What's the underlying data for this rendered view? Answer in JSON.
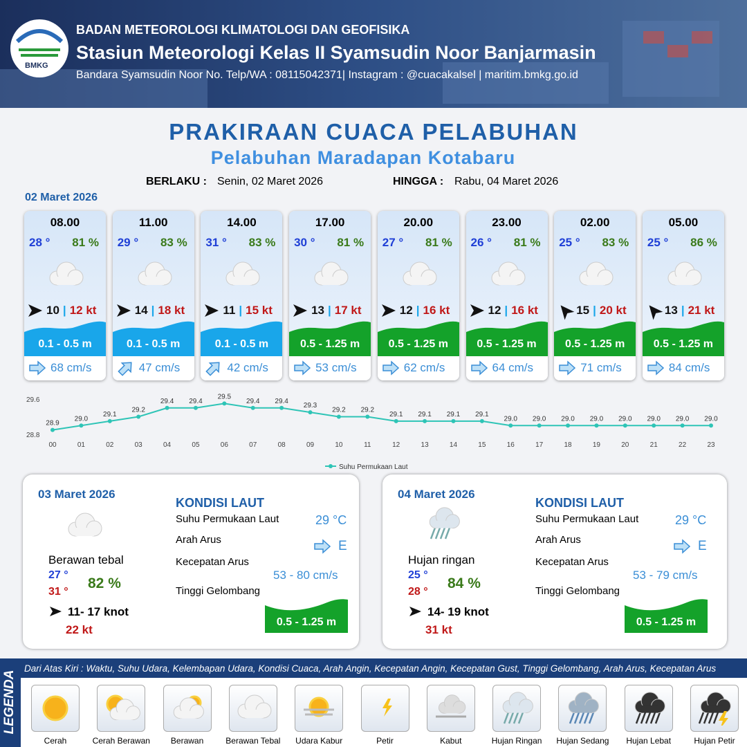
{
  "header": {
    "logo": "BMKG",
    "org": "BADAN METEOROLOGI KLIMATOLOGI DAN GEOFISIKA",
    "station": "Stasiun Meteorologi Kelas II Syamsudin Noor Banjarmasin",
    "contact": "Bandara Syamsudin Noor No. Telp/WA : 08115042371| Instagram : @cuacakalsel | maritim.bmkg.go.id"
  },
  "title": "PRAKIRAAN CUACA PELABUHAN",
  "subtitle": "Pelabuhan Maradapan Kotabaru",
  "validity": {
    "from_label": "BERLAKU :",
    "from": "Senin, 02 Maret 2026",
    "to_label": "HINGGA :",
    "to": "Rabu, 04 Maret 2026"
  },
  "day1": {
    "date": "02 Maret 2026",
    "separator": "|",
    "cards": [
      {
        "time": "08.00",
        "temp": "28 °",
        "humidity": "81 %",
        "wind": "10",
        "gust": "12 kt",
        "wave": "0.1 - 0.5 m",
        "current": "68 cm/s"
      },
      {
        "time": "11.00",
        "temp": "29 °",
        "humidity": "83 %",
        "wind": "14",
        "gust": "18 kt",
        "wave": "0.1 - 0.5 m",
        "current": "47 cm/s"
      },
      {
        "time": "14.00",
        "temp": "31 °",
        "humidity": "83 %",
        "wind": "11",
        "gust": "15 kt",
        "wave": "0.1 - 0.5 m",
        "current": "42 cm/s"
      },
      {
        "time": "17.00",
        "temp": "30 °",
        "humidity": "81 %",
        "wind": "13",
        "gust": "17 kt",
        "wave": "0.5 - 1.25 m",
        "current": "53 cm/s"
      },
      {
        "time": "20.00",
        "temp": "27 °",
        "humidity": "81 %",
        "wind": "12",
        "gust": "16 kt",
        "wave": "0.5 - 1.25 m",
        "current": "62 cm/s"
      },
      {
        "time": "23.00",
        "temp": "26 °",
        "humidity": "81 %",
        "wind": "12",
        "gust": "16 kt",
        "wave": "0.5 - 1.25 m",
        "current": "64 cm/s"
      },
      {
        "time": "02.00",
        "temp": "25 °",
        "humidity": "83 %",
        "wind": "15",
        "gust": "20 kt",
        "wave": "0.5 - 1.25 m",
        "current": "71 cm/s"
      },
      {
        "time": "05.00",
        "temp": "25 °",
        "humidity": "86 %",
        "wind": "13",
        "gust": "21 kt",
        "wave": "0.5 - 1.25 m",
        "current": "84 cm/s"
      }
    ]
  },
  "chart_data": {
    "type": "line",
    "categories": [
      "00",
      "01",
      "02",
      "03",
      "04",
      "05",
      "06",
      "07",
      "08",
      "09",
      "10",
      "11",
      "12",
      "13",
      "14",
      "15",
      "16",
      "17",
      "18",
      "19",
      "20",
      "21",
      "22",
      "23"
    ],
    "series": [
      {
        "name": "Suhu Permukaan Laut",
        "color": "#2ec4b6",
        "values": [
          28.9,
          29.0,
          29.1,
          29.2,
          29.4,
          29.4,
          29.5,
          29.4,
          29.4,
          29.3,
          29.2,
          29.2,
          29.1,
          29.1,
          29.1,
          29.1,
          29.0,
          29.0,
          29.0,
          29.0,
          29.0,
          29.0,
          29.0,
          29.0
        ],
        "value_labels": [
          "28.9",
          "29.0",
          "29.1",
          "29.2",
          "29.4",
          "29.4",
          "29.5",
          "29.4",
          "29.4",
          "29.3",
          "29.2",
          "29.2",
          "29.1",
          "29.1",
          "29.1",
          "29.1",
          "29.0",
          "29.0",
          "29.0",
          "29.0",
          "29.0",
          "29.0",
          "29.0",
          "29.0"
        ]
      }
    ],
    "ylim": [
      28.8,
      29.6
    ],
    "yticks": [
      28.8,
      29.6
    ],
    "legend": "bottom"
  },
  "days": [
    {
      "date": "03 Maret 2026",
      "condition": "Berawan tebal",
      "temp_min": "27 °",
      "temp_max": "31 °",
      "humidity": "82 %",
      "wind": "11- 17 knot",
      "gust": "22 kt",
      "sea_title": "KONDISI LAUT",
      "sea_labels": [
        "Suhu Permukaan Laut",
        "Arah Arus",
        "Kecepatan Arus",
        "Tinggi Gelombang"
      ],
      "sst": "29 °C",
      "current_dir": "E",
      "current_speed": "53 - 80 cm/s",
      "wave": "0.5 - 1.25 m"
    },
    {
      "date": "04 Maret 2026",
      "condition": "Hujan ringan",
      "temp_min": "25 °",
      "temp_max": "28 °",
      "humidity": "84 %",
      "wind": "14- 19 knot",
      "gust": "31 kt",
      "sea_title": "KONDISI LAUT",
      "sea_labels": [
        "Suhu Permukaan Laut",
        "Arah Arus",
        "Kecepatan Arus",
        "Tinggi Gelombang"
      ],
      "sst": "29 °C",
      "current_dir": "E",
      "current_speed": "53 - 79 cm/s",
      "wave": "0.5 - 1.25 m"
    }
  ],
  "legend": {
    "title": "LEGENDA",
    "description": "Dari Atas Kiri : Waktu, Suhu Udara, Kelembapan Udara, Kondisi Cuaca, Arah Angin, Kecepatan Angin, Kecepatan Gust, Tinggi Gelombang, Arah Arus, Kecepatan Arus",
    "items": [
      "Cerah",
      "Cerah Berawan",
      "Berawan",
      "Berawan Tebal",
      "Udara Kabur",
      "Petir",
      "Kabut",
      "Hujan Ringan",
      "Hujan Sedang",
      "Hujan Lebat",
      "Hujan Petir"
    ]
  }
}
